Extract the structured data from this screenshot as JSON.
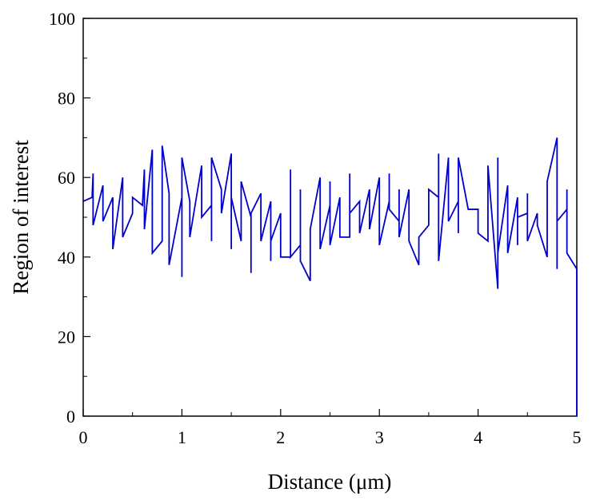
{
  "chart_data": {
    "type": "line",
    "xlabel": "Distance (μm)",
    "ylabel": "Region of interest",
    "series": [
      {
        "color": "#0000cc",
        "x": [
          0,
          0.09,
          0.1,
          0.1,
          0.2,
          0.2,
          0.3,
          0.3,
          0.4,
          0.4,
          0.5,
          0.5,
          0.6,
          0.62,
          0.62,
          0.7,
          0.7,
          0.8,
          0.8,
          0.87,
          0.87,
          1.0,
          1.0,
          1.0,
          1.08,
          1.08,
          1.2,
          1.2,
          1.3,
          1.3,
          1.3,
          1.4,
          1.4,
          1.5,
          1.5,
          1.5,
          1.6,
          1.6,
          1.7,
          1.7,
          1.7,
          1.8,
          1.8,
          1.9,
          1.9,
          1.9,
          2.0,
          2.0,
          2.1,
          2.1,
          2.1,
          2.2,
          2.2,
          2.2,
          2.3,
          2.3,
          2.4,
          2.4,
          2.5,
          2.5,
          2.5,
          2.6,
          2.6,
          2.7,
          2.7,
          2.7,
          2.8,
          2.8,
          2.9,
          2.9,
          3.0,
          3.0,
          3.1,
          3.1,
          3.1,
          3.2,
          3.2,
          3.2,
          3.3,
          3.3,
          3.4,
          3.4,
          3.5,
          3.5,
          3.6,
          3.6,
          3.6,
          3.7,
          3.7,
          3.8,
          3.8,
          3.8,
          3.9,
          3.9,
          4.0,
          4.0,
          4.1,
          4.1,
          4.2,
          4.2,
          4.2,
          4.3,
          4.3,
          4.4,
          4.4,
          4.4,
          4.5,
          4.5,
          4.5,
          4.6,
          4.6,
          4.7,
          4.7,
          4.8,
          4.8,
          4.8,
          4.9,
          4.9,
          4.9,
          5.0,
          5.0
        ],
        "values": [
          54,
          55,
          61,
          48,
          58,
          49,
          55,
          42,
          60,
          45,
          51,
          55,
          53,
          62,
          47,
          67,
          41,
          44,
          68,
          56,
          38,
          55,
          35,
          65,
          54,
          45,
          63,
          50,
          53,
          44,
          65,
          57,
          51,
          66,
          42,
          55,
          44,
          59,
          50,
          36,
          51,
          56,
          44,
          54,
          39,
          44,
          51,
          40,
          40,
          62,
          40,
          43,
          57,
          39,
          34,
          47,
          60,
          42,
          53,
          59,
          43,
          55,
          45,
          45,
          61,
          51,
          54,
          46,
          57,
          47,
          60,
          43,
          54,
          61,
          52,
          49,
          57,
          45,
          57,
          44,
          38,
          45,
          48,
          57,
          55,
          66,
          39,
          65,
          49,
          54,
          46,
          65,
          52,
          52,
          52,
          46,
          44,
          63,
          32,
          65,
          41,
          58,
          41,
          55,
          43,
          50,
          51,
          56,
          44,
          51,
          48,
          40,
          59,
          70,
          37,
          49,
          52,
          57,
          41,
          37,
          0
        ]
      }
    ],
    "xlim": [
      0,
      5
    ],
    "xticks": [
      0,
      1,
      2,
      3,
      4,
      5
    ],
    "xminor_ticks": [
      0.5,
      1.5,
      2.5,
      3.5,
      4.5
    ],
    "ylim": [
      0,
      100
    ],
    "yticks": [
      0,
      20,
      40,
      60,
      80,
      100
    ],
    "yminor_ticks": [
      10,
      30,
      50,
      70,
      90
    ]
  }
}
